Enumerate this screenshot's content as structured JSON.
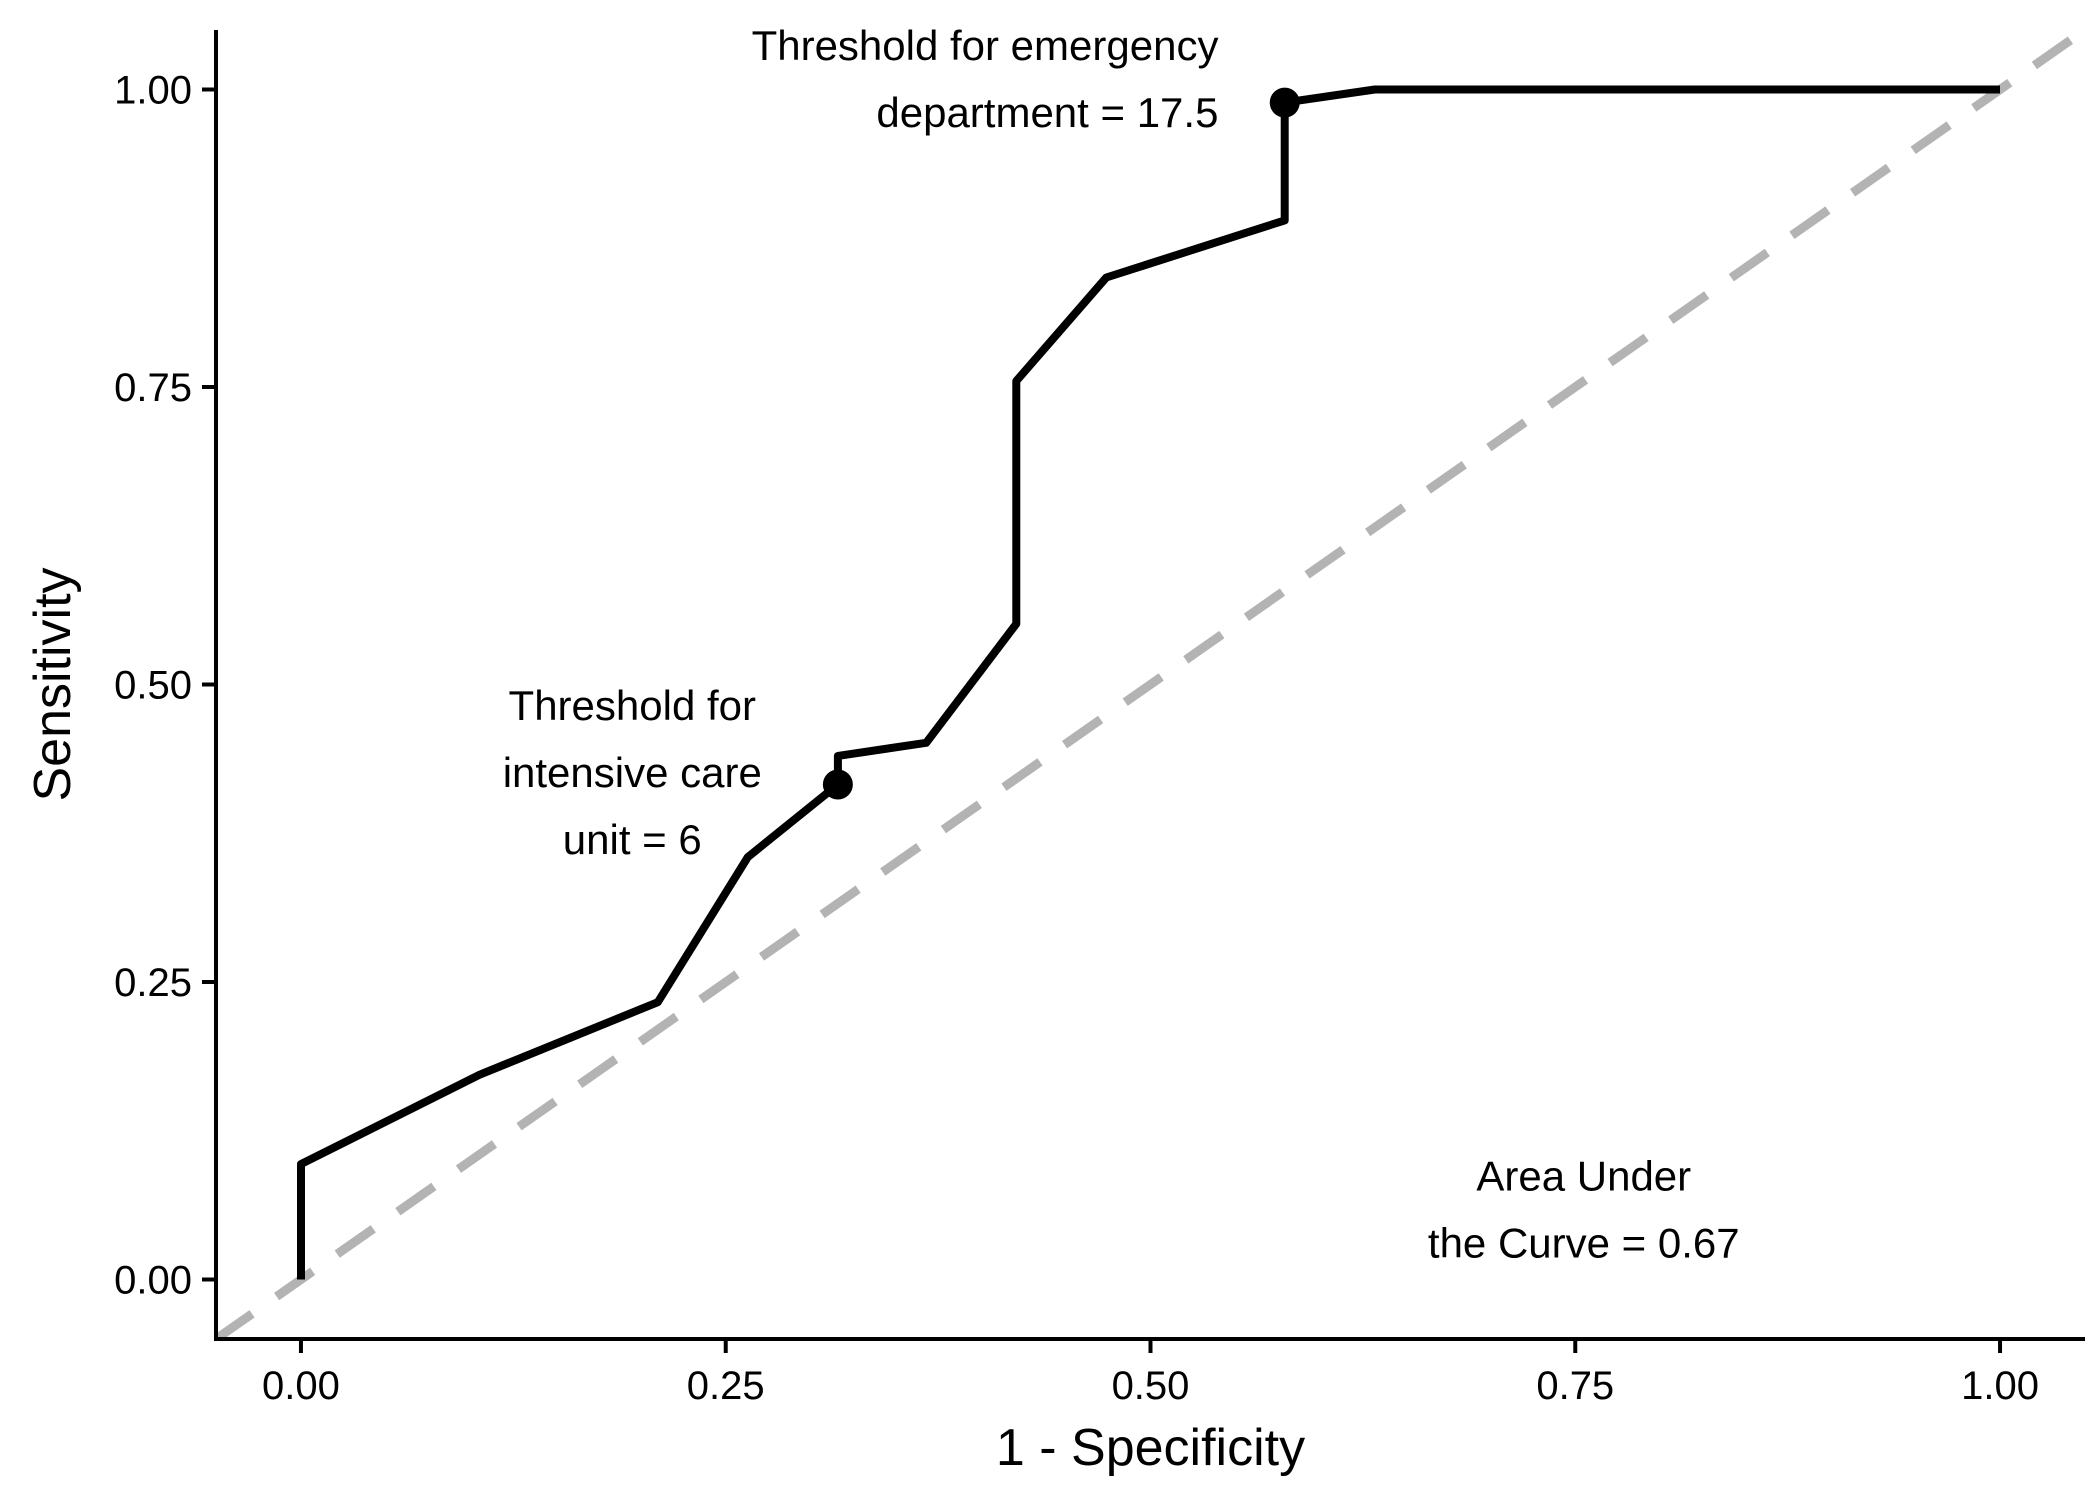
{
  "chart_data": {
    "type": "line",
    "title": "",
    "xlabel": "1 - Specificity",
    "ylabel": "Sensitivity",
    "xlim": [
      -0.05,
      1.05
    ],
    "ylim": [
      -0.05,
      1.05
    ],
    "x_ticks": [
      0,
      0.25,
      0.5,
      0.75,
      1
    ],
    "x_tick_labels": [
      "0.00",
      "0.25",
      "0.50",
      "0.75",
      "1.00"
    ],
    "y_ticks": [
      0,
      0.25,
      0.5,
      0.75,
      1
    ],
    "y_tick_labels": [
      "0.00",
      "0.25",
      "0.50",
      "0.75",
      "1.00"
    ],
    "grid": false,
    "legend": "none",
    "series": [
      {
        "style": "solid",
        "color": "#000000",
        "x": [
          0,
          0,
          0.105,
          0.21,
          0.263,
          0.316,
          0.316,
          0.368,
          0.421,
          0.421,
          0.474,
          0.579,
          0.579,
          0.632,
          1
        ],
        "y": [
          0,
          0.097,
          0.172,
          0.233,
          0.355,
          0.416,
          0.44,
          0.451,
          0.551,
          0.755,
          0.842,
          0.89,
          0.989,
          1,
          1
        ]
      },
      {
        "style": "dashed",
        "color": "#b3b3b3",
        "x": [
          -0.05,
          1.05
        ],
        "y": [
          -0.05,
          1.05
        ]
      }
    ],
    "points": [
      {
        "x": 0.316,
        "y": 0.416
      },
      {
        "x": 0.579,
        "y": 0.989
      }
    ],
    "annotations": [
      {
        "lines": [
          "Threshold for emergency",
          "department = 17.5"
        ],
        "x": 0.54,
        "y": 1.025,
        "anchor": "end"
      },
      {
        "lines": [
          "Threshold for",
          "intensive care",
          "unit = 6"
        ],
        "x": 0.195,
        "y": 0.47,
        "anchor": "middle"
      },
      {
        "lines": [
          "Area Under",
          "the Curve = 0.67"
        ],
        "x": 0.755,
        "y": 0.075,
        "anchor": "middle"
      }
    ]
  }
}
